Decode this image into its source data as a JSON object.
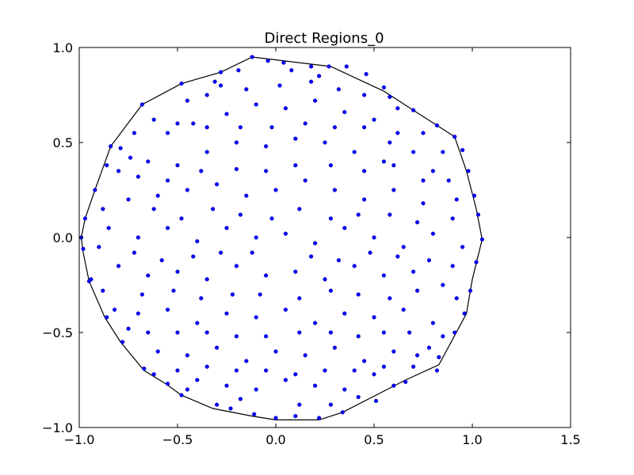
{
  "chart_data": {
    "type": "scatter",
    "title": "Direct Regions_0",
    "xlabel": "",
    "ylabel": "",
    "xlim": [
      -1.0,
      1.5
    ],
    "ylim": [
      -1.0,
      1.0
    ],
    "x_ticks": [
      -1.0,
      -0.5,
      0.0,
      0.5,
      1.0,
      1.5
    ],
    "y_ticks": [
      -1.0,
      -0.5,
      0.0,
      0.5,
      1.0
    ],
    "x_tick_labels": [
      "−1.0",
      "−0.5",
      "0.0",
      "0.5",
      "1.0",
      "1.5"
    ],
    "y_tick_labels": [
      "−1.0",
      "−0.5",
      "0.0",
      "0.5",
      "1.0"
    ],
    "grid": false,
    "legend": "none",
    "marker_color": "#0000ff",
    "hull_color": "#000000",
    "series": [
      {
        "points": [
          [
            -0.12,
            0.95
          ],
          [
            -0.04,
            0.93
          ],
          [
            0.04,
            0.92
          ],
          [
            0.18,
            0.9
          ],
          [
            0.27,
            0.9
          ],
          [
            0.36,
            0.9
          ],
          [
            -0.28,
            0.87
          ],
          [
            -0.19,
            0.88
          ],
          [
            0.46,
            0.86
          ],
          [
            -0.48,
            0.81
          ],
          [
            -0.31,
            0.82
          ],
          [
            0.55,
            0.79
          ],
          [
            -0.68,
            0.7
          ],
          [
            0.58,
            0.74
          ],
          [
            0.7,
            0.67
          ],
          [
            0.82,
            0.59
          ],
          [
            0.91,
            0.53
          ],
          [
            0.95,
            0.46
          ],
          [
            -0.84,
            0.48
          ],
          [
            -0.79,
            0.47
          ],
          [
            -0.86,
            0.38
          ],
          [
            -0.74,
            0.42
          ],
          [
            0.98,
            0.35
          ],
          [
            1.01,
            0.22
          ],
          [
            -0.92,
            0.25
          ],
          [
            -0.97,
            0.1
          ],
          [
            1.03,
            0.12
          ],
          [
            -0.99,
            0.0
          ],
          [
            1.05,
            -0.01
          ],
          [
            -0.98,
            -0.06
          ],
          [
            -0.95,
            -0.23
          ],
          [
            1.02,
            -0.13
          ],
          [
            -0.94,
            -0.22
          ],
          [
            0.99,
            -0.28
          ],
          [
            -0.86,
            -0.42
          ],
          [
            0.96,
            -0.4
          ],
          [
            -0.78,
            -0.55
          ],
          [
            0.91,
            -0.5
          ],
          [
            -0.67,
            -0.69
          ],
          [
            0.83,
            -0.63
          ],
          [
            -0.55,
            -0.77
          ],
          [
            0.82,
            -0.7
          ],
          [
            -0.48,
            -0.83
          ],
          [
            0.66,
            -0.76
          ],
          [
            -0.3,
            -0.88
          ],
          [
            0.51,
            -0.86
          ],
          [
            -0.23,
            -0.9
          ],
          [
            0.34,
            -0.92
          ],
          [
            -0.11,
            -0.93
          ],
          [
            0.0,
            -0.95
          ],
          [
            0.22,
            -0.95
          ],
          [
            0.1,
            -0.94
          ],
          [
            -0.55,
            0.55
          ],
          [
            -0.42,
            0.6
          ],
          [
            -0.25,
            0.65
          ],
          [
            -0.1,
            0.7
          ],
          [
            0.05,
            0.68
          ],
          [
            0.2,
            0.72
          ],
          [
            0.35,
            0.66
          ],
          [
            0.5,
            0.62
          ],
          [
            0.62,
            0.55
          ],
          [
            0.7,
            0.45
          ],
          [
            -0.65,
            0.4
          ],
          [
            -0.5,
            0.38
          ],
          [
            -0.35,
            0.45
          ],
          [
            -0.2,
            0.5
          ],
          [
            -0.05,
            0.48
          ],
          [
            0.1,
            0.52
          ],
          [
            0.25,
            0.5
          ],
          [
            0.4,
            0.45
          ],
          [
            0.55,
            0.4
          ],
          [
            0.8,
            0.35
          ],
          [
            -0.75,
            0.2
          ],
          [
            -0.6,
            0.22
          ],
          [
            -0.45,
            0.25
          ],
          [
            -0.3,
            0.28
          ],
          [
            -0.15,
            0.22
          ],
          [
            0.0,
            0.25
          ],
          [
            0.15,
            0.3
          ],
          [
            0.3,
            0.25
          ],
          [
            0.45,
            0.2
          ],
          [
            0.6,
            0.25
          ],
          [
            0.75,
            0.18
          ],
          [
            0.9,
            0.1
          ],
          [
            -0.85,
            0.05
          ],
          [
            -0.7,
            0.0
          ],
          [
            -0.55,
            0.05
          ],
          [
            -0.4,
            -0.02
          ],
          [
            -0.25,
            0.05
          ],
          [
            -0.1,
            0.0
          ],
          [
            0.05,
            0.02
          ],
          [
            0.2,
            -0.03
          ],
          [
            0.35,
            0.05
          ],
          [
            0.5,
            0.0
          ],
          [
            0.65,
            -0.05
          ],
          [
            0.8,
            0.02
          ],
          [
            -0.8,
            -0.15
          ],
          [
            -0.65,
            -0.2
          ],
          [
            -0.5,
            -0.18
          ],
          [
            -0.35,
            -0.22
          ],
          [
            -0.2,
            -0.15
          ],
          [
            -0.05,
            -0.2
          ],
          [
            0.1,
            -0.18
          ],
          [
            0.25,
            -0.22
          ],
          [
            0.4,
            -0.15
          ],
          [
            0.55,
            -0.2
          ],
          [
            0.7,
            -0.18
          ],
          [
            0.85,
            -0.25
          ],
          [
            -0.7,
            -0.4
          ],
          [
            -0.55,
            -0.38
          ],
          [
            -0.4,
            -0.45
          ],
          [
            -0.25,
            -0.4
          ],
          [
            -0.1,
            -0.42
          ],
          [
            0.05,
            -0.38
          ],
          [
            0.2,
            -0.45
          ],
          [
            0.35,
            -0.4
          ],
          [
            0.5,
            -0.42
          ],
          [
            0.65,
            -0.38
          ],
          [
            0.8,
            -0.45
          ],
          [
            -0.6,
            -0.6
          ],
          [
            -0.45,
            -0.62
          ],
          [
            -0.3,
            -0.58
          ],
          [
            -0.15,
            -0.65
          ],
          [
            0.0,
            -0.6
          ],
          [
            0.15,
            -0.62
          ],
          [
            0.3,
            -0.58
          ],
          [
            0.45,
            -0.65
          ],
          [
            0.6,
            -0.6
          ],
          [
            0.72,
            -0.62
          ],
          [
            -0.4,
            -0.75
          ],
          [
            -0.25,
            -0.78
          ],
          [
            -0.1,
            -0.8
          ],
          [
            0.05,
            -0.75
          ],
          [
            0.2,
            -0.78
          ],
          [
            0.35,
            -0.8
          ],
          [
            0.5,
            -0.72
          ],
          [
            -0.02,
            0.1
          ],
          [
            0.12,
            0.15
          ],
          [
            -0.18,
            0.12
          ],
          [
            0.28,
            0.1
          ],
          [
            -0.32,
            0.15
          ],
          [
            0.42,
            0.12
          ],
          [
            -0.48,
            0.1
          ],
          [
            0.58,
            0.12
          ],
          [
            -0.62,
            0.15
          ],
          [
            0.72,
            0.08
          ],
          [
            -0.12,
            -0.08
          ],
          [
            0.18,
            -0.1
          ],
          [
            -0.28,
            -0.08
          ],
          [
            0.32,
            -0.12
          ],
          [
            -0.42,
            -0.1
          ],
          [
            0.48,
            -0.08
          ],
          [
            -0.58,
            -0.12
          ],
          [
            0.62,
            -0.1
          ],
          [
            -0.72,
            -0.08
          ],
          [
            0.78,
            -0.12
          ],
          [
            -0.05,
            0.35
          ],
          [
            0.1,
            0.38
          ],
          [
            -0.2,
            0.36
          ],
          [
            0.28,
            0.38
          ],
          [
            -0.38,
            0.35
          ],
          [
            0.45,
            0.35
          ],
          [
            -0.55,
            0.3
          ],
          [
            0.6,
            0.38
          ],
          [
            -0.7,
            0.32
          ],
          [
            0.75,
            0.3
          ],
          [
            -0.08,
            -0.3
          ],
          [
            0.12,
            -0.32
          ],
          [
            -0.22,
            -0.3
          ],
          [
            0.28,
            -0.28
          ],
          [
            -0.38,
            -0.32
          ],
          [
            0.42,
            -0.3
          ],
          [
            -0.52,
            -0.28
          ],
          [
            0.58,
            -0.32
          ],
          [
            -0.68,
            -0.3
          ],
          [
            0.72,
            -0.28
          ],
          [
            -0.02,
            0.58
          ],
          [
            0.15,
            0.6
          ],
          [
            -0.18,
            0.58
          ],
          [
            0.3,
            0.58
          ],
          [
            -0.35,
            0.58
          ],
          [
            0.45,
            0.58
          ],
          [
            -0.5,
            0.6
          ],
          [
            0.58,
            0.5
          ],
          [
            -0.05,
            -0.52
          ],
          [
            0.12,
            -0.5
          ],
          [
            -0.2,
            -0.52
          ],
          [
            0.28,
            -0.5
          ],
          [
            -0.35,
            -0.5
          ],
          [
            0.42,
            -0.52
          ],
          [
            -0.5,
            -0.5
          ],
          [
            0.55,
            -0.5
          ],
          [
            -0.65,
            -0.5
          ],
          [
            0.68,
            -0.5
          ],
          [
            0.02,
            0.8
          ],
          [
            -0.15,
            0.78
          ],
          [
            0.18,
            0.82
          ],
          [
            -0.35,
            0.75
          ],
          [
            0.32,
            0.78
          ],
          [
            0.45,
            0.75
          ],
          [
            -0.05,
            -0.7
          ],
          [
            0.1,
            -0.72
          ],
          [
            -0.2,
            -0.7
          ],
          [
            0.25,
            -0.7
          ],
          [
            -0.35,
            -0.68
          ],
          [
            0.4,
            -0.7
          ],
          [
            -0.5,
            -0.7
          ],
          [
            0.55,
            -0.68
          ],
          [
            0.62,
            0.68
          ],
          [
            0.75,
            0.55
          ],
          [
            0.85,
            0.45
          ],
          [
            0.88,
            0.3
          ],
          [
            0.92,
            0.2
          ],
          [
            0.95,
            -0.05
          ],
          [
            0.9,
            -0.15
          ],
          [
            0.92,
            -0.32
          ],
          [
            0.85,
            -0.52
          ],
          [
            0.78,
            -0.58
          ],
          [
            -0.8,
            0.35
          ],
          [
            -0.88,
            0.15
          ],
          [
            -0.9,
            -0.05
          ],
          [
            -0.88,
            -0.28
          ],
          [
            -0.82,
            -0.38
          ],
          [
            -0.75,
            -0.48
          ],
          [
            -0.62,
            0.62
          ],
          [
            -0.72,
            0.55
          ],
          [
            -0.45,
            0.72
          ],
          [
            -0.28,
            0.8
          ],
          [
            0.08,
            0.88
          ],
          [
            0.22,
            0.85
          ],
          [
            -0.62,
            -0.72
          ],
          [
            -0.45,
            -0.8
          ],
          [
            -0.18,
            -0.85
          ],
          [
            0.12,
            -0.88
          ],
          [
            0.28,
            -0.88
          ],
          [
            0.42,
            -0.84
          ],
          [
            0.6,
            -0.78
          ],
          [
            0.7,
            -0.68
          ]
        ]
      }
    ],
    "hull": [
      [
        -0.12,
        0.95
      ],
      [
        0.28,
        0.9
      ],
      [
        0.55,
        0.77
      ],
      [
        0.7,
        0.67
      ],
      [
        0.82,
        0.59
      ],
      [
        0.91,
        0.53
      ],
      [
        0.97,
        0.35
      ],
      [
        1.02,
        0.15
      ],
      [
        1.05,
        -0.01
      ],
      [
        1.0,
        -0.22
      ],
      [
        0.97,
        -0.4
      ],
      [
        0.83,
        -0.67
      ],
      [
        0.66,
        -0.75
      ],
      [
        0.34,
        -0.92
      ],
      [
        0.22,
        -0.96
      ],
      [
        0.0,
        -0.96
      ],
      [
        -0.12,
        -0.94
      ],
      [
        -0.32,
        -0.9
      ],
      [
        -0.48,
        -0.83
      ],
      [
        -0.56,
        -0.77
      ],
      [
        -0.67,
        -0.7
      ],
      [
        -0.79,
        -0.55
      ],
      [
        -0.87,
        -0.42
      ],
      [
        -0.95,
        -0.23
      ],
      [
        -0.98,
        -0.08
      ],
      [
        -0.99,
        0.0
      ],
      [
        -0.97,
        0.1
      ],
      [
        -0.92,
        0.25
      ],
      [
        -0.84,
        0.48
      ],
      [
        -0.68,
        0.7
      ],
      [
        -0.48,
        0.81
      ],
      [
        -0.28,
        0.87
      ]
    ]
  }
}
